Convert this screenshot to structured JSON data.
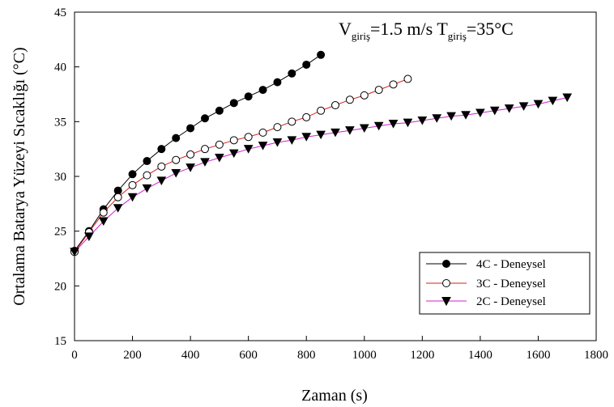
{
  "chart_data": {
    "type": "line",
    "title": "",
    "xlabel": "Zaman (s)",
    "ylabel": "Ortalama Batarya Yüzeyi Sıcaklığı (°C)",
    "xlim": [
      0,
      1800
    ],
    "ylim": [
      15,
      45
    ],
    "xticks": [
      0,
      200,
      400,
      600,
      800,
      1000,
      1200,
      1400,
      1600,
      1800
    ],
    "yticks": [
      15,
      20,
      25,
      30,
      35,
      40,
      45
    ],
    "grid": false,
    "legend_position": "bottom-right",
    "annotation": {
      "v": "V",
      "v_sub": "giriş",
      "v_value": "=1.5 m/s ",
      "t": "T",
      "t_sub": "giriş",
      "t_value": "=35°C"
    },
    "series": [
      {
        "name": "4C - Deneysel",
        "marker": "filled-circle",
        "line_color": "#000000",
        "x": [
          0,
          50,
          100,
          150,
          200,
          250,
          300,
          350,
          400,
          450,
          500,
          550,
          600,
          650,
          700,
          750,
          800,
          850
        ],
        "y": [
          23.2,
          25.0,
          27.0,
          28.7,
          30.2,
          31.4,
          32.5,
          33.5,
          34.4,
          35.3,
          36.0,
          36.7,
          37.3,
          37.9,
          38.6,
          39.4,
          40.2,
          41.1
        ]
      },
      {
        "name": "3C - Deneysel",
        "marker": "open-circle",
        "line_color": "#d81e1e",
        "x": [
          0,
          50,
          100,
          150,
          200,
          250,
          300,
          350,
          400,
          450,
          500,
          550,
          600,
          650,
          700,
          750,
          800,
          850,
          900,
          950,
          1000,
          1050,
          1100,
          1150
        ],
        "y": [
          23.1,
          24.9,
          26.7,
          28.1,
          29.2,
          30.1,
          30.9,
          31.5,
          32.0,
          32.5,
          32.9,
          33.3,
          33.6,
          34.0,
          34.5,
          35.0,
          35.4,
          36.0,
          36.5,
          37.0,
          37.4,
          37.9,
          38.4,
          38.9
        ]
      },
      {
        "name": "2C - Deneysel",
        "marker": "filled-triangle-down",
        "line_color": "#d020d0",
        "x": [
          0,
          50,
          100,
          150,
          200,
          250,
          300,
          350,
          400,
          450,
          500,
          550,
          600,
          650,
          700,
          750,
          800,
          850,
          900,
          950,
          1000,
          1050,
          1100,
          1150,
          1200,
          1250,
          1300,
          1350,
          1400,
          1450,
          1500,
          1550,
          1600,
          1650,
          1700
        ],
        "y": [
          23.1,
          24.5,
          25.9,
          27.1,
          28.1,
          28.9,
          29.6,
          30.3,
          30.8,
          31.3,
          31.7,
          32.1,
          32.5,
          32.8,
          33.1,
          33.3,
          33.6,
          33.8,
          34.0,
          34.2,
          34.4,
          34.6,
          34.8,
          34.9,
          35.1,
          35.3,
          35.5,
          35.6,
          35.8,
          36.0,
          36.2,
          36.4,
          36.6,
          36.9,
          37.2
        ]
      }
    ]
  }
}
